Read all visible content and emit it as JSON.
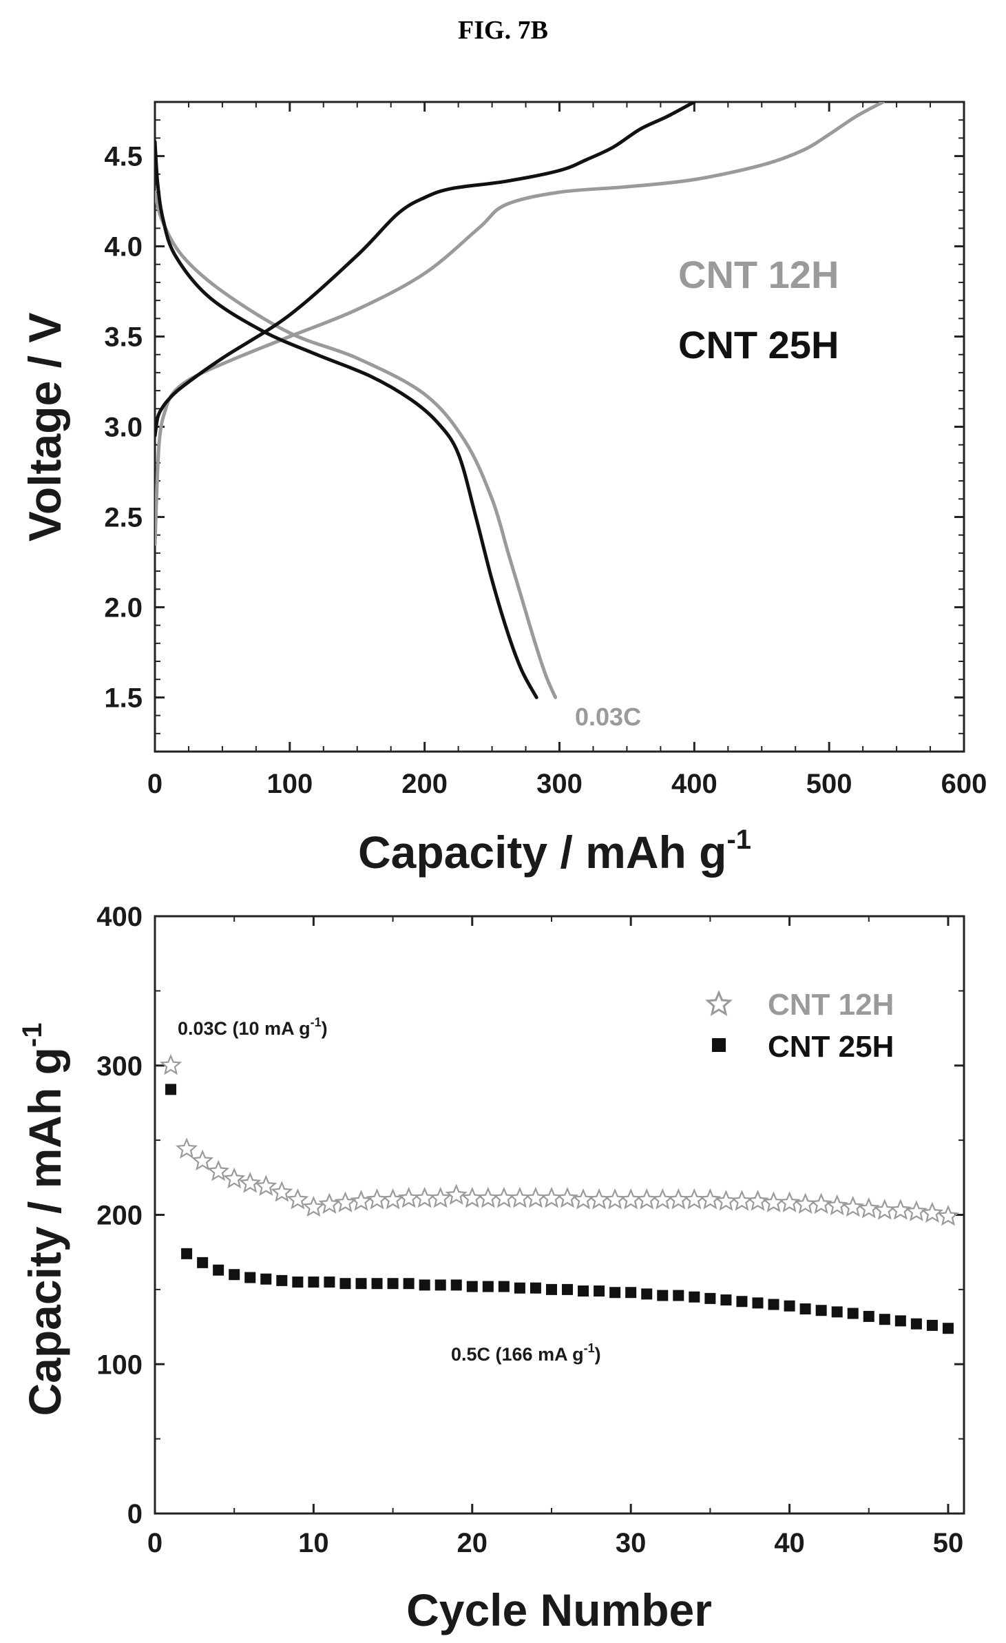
{
  "figure_title": "FIG. 7B",
  "colors": {
    "cnt12h": "#9a9a9a",
    "cnt25h": "#111111",
    "axis": "#222222"
  },
  "chart_data": [
    {
      "type": "line",
      "xlabel": "Capacity / mAh g",
      "xlabel_sup": "-1",
      "ylabel": "Voltage / V",
      "xlim": [
        0,
        600
      ],
      "ylim": [
        1.2,
        4.8
      ],
      "xticks": [
        "0",
        "100",
        "200",
        "300",
        "400",
        "500",
        "600"
      ],
      "yticks": [
        "1.5",
        "2.0",
        "2.5",
        "3.0",
        "3.5",
        "4.0",
        "4.5"
      ],
      "legend": [
        "CNT 12H",
        "CNT 25H"
      ],
      "legend_position": "right",
      "annotation": "0.03C",
      "series": [
        {
          "name": "CNT 12H",
          "color": "#9a9a9a",
          "charge": {
            "x": [
              0,
              3,
              8,
              15,
              30,
              60,
              100,
              150,
              200,
              240,
              260,
              300,
              350,
              400,
              450,
              480,
              500,
              520,
              540
            ],
            "y": [
              2.35,
              2.9,
              3.1,
              3.2,
              3.28,
              3.38,
              3.5,
              3.65,
              3.85,
              4.1,
              4.23,
              4.3,
              4.33,
              4.37,
              4.45,
              4.53,
              4.62,
              4.72,
              4.8
            ]
          },
          "discharge": {
            "x": [
              0,
              5,
              20,
              50,
              100,
              150,
              200,
              230,
              250,
              262,
              272,
              282,
              290,
              297
            ],
            "y": [
              4.3,
              4.15,
              3.95,
              3.75,
              3.52,
              3.38,
              3.18,
              2.92,
              2.6,
              2.3,
              2.05,
              1.8,
              1.62,
              1.5
            ]
          }
        },
        {
          "name": "CNT 25H",
          "color": "#111111",
          "charge": {
            "x": [
              0,
              2,
              5,
              10,
              20,
              50,
              100,
              150,
              180,
              200,
              220,
              260,
              300,
              320,
              340,
              360,
              380,
              400
            ],
            "y": [
              2.95,
              3.05,
              3.1,
              3.15,
              3.22,
              3.38,
              3.62,
              3.95,
              4.18,
              4.27,
              4.32,
              4.36,
              4.42,
              4.48,
              4.55,
              4.65,
              4.72,
              4.8
            ]
          },
          "discharge": {
            "x": [
              0,
              2,
              6,
              15,
              40,
              80,
              120,
              160,
              190,
              210,
              225,
              238,
              250,
              262,
              272,
              283
            ],
            "y": [
              4.58,
              4.35,
              4.15,
              3.95,
              3.72,
              3.53,
              3.4,
              3.28,
              3.15,
              3.02,
              2.85,
              2.5,
              2.15,
              1.85,
              1.65,
              1.5
            ]
          }
        }
      ]
    },
    {
      "type": "scatter",
      "xlabel": "Cycle Number",
      "ylabel": "Capacity / mAh g",
      "ylabel_sup": "-1",
      "xlim": [
        0,
        51
      ],
      "ylim": [
        0,
        400
      ],
      "xticks": [
        "0",
        "10",
        "20",
        "30",
        "40",
        "50"
      ],
      "yticks": [
        "0",
        "100",
        "200",
        "300",
        "400"
      ],
      "legend": [
        "CNT 12H",
        "CNT 25H"
      ],
      "legend_position": "top-right",
      "annotations": [
        {
          "text": "0.03C (10 mA g",
          "sup": "-1",
          "close": ")"
        },
        {
          "text": "0.5C (166 mA g",
          "sup": "-1",
          "close": ")"
        }
      ],
      "series": [
        {
          "name": "CNT 12H",
          "marker": "star",
          "x": [
            1,
            2,
            3,
            4,
            5,
            6,
            7,
            8,
            9,
            10,
            11,
            12,
            13,
            14,
            15,
            16,
            17,
            18,
            19,
            20,
            21,
            22,
            23,
            24,
            25,
            26,
            27,
            28,
            29,
            30,
            31,
            32,
            33,
            34,
            35,
            36,
            37,
            38,
            39,
            40,
            41,
            42,
            43,
            44,
            45,
            46,
            47,
            48,
            49,
            50
          ],
          "y": [
            300,
            244,
            236,
            229,
            224,
            221,
            219,
            215,
            210,
            205,
            207,
            208,
            209,
            210,
            210,
            211,
            211,
            211,
            213,
            211,
            211,
            211,
            211,
            211,
            211,
            211,
            210,
            210,
            210,
            210,
            210,
            210,
            210,
            210,
            210,
            209,
            209,
            209,
            208,
            208,
            207,
            207,
            206,
            205,
            204,
            203,
            203,
            202,
            201,
            199
          ]
        },
        {
          "name": "CNT 25H",
          "marker": "square",
          "x": [
            1,
            2,
            3,
            4,
            5,
            6,
            7,
            8,
            9,
            10,
            11,
            12,
            13,
            14,
            15,
            16,
            17,
            18,
            19,
            20,
            21,
            22,
            23,
            24,
            25,
            26,
            27,
            28,
            29,
            30,
            31,
            32,
            33,
            34,
            35,
            36,
            37,
            38,
            39,
            40,
            41,
            42,
            43,
            44,
            45,
            46,
            47,
            48,
            49,
            50
          ],
          "y": [
            284,
            174,
            168,
            163,
            160,
            158,
            157,
            156,
            155,
            155,
            155,
            154,
            154,
            154,
            154,
            154,
            153,
            153,
            153,
            152,
            152,
            152,
            151,
            151,
            150,
            150,
            149,
            149,
            148,
            148,
            147,
            146,
            146,
            145,
            144,
            143,
            142,
            141,
            140,
            139,
            137,
            136,
            135,
            134,
            132,
            130,
            129,
            127,
            126,
            124
          ]
        }
      ]
    }
  ]
}
